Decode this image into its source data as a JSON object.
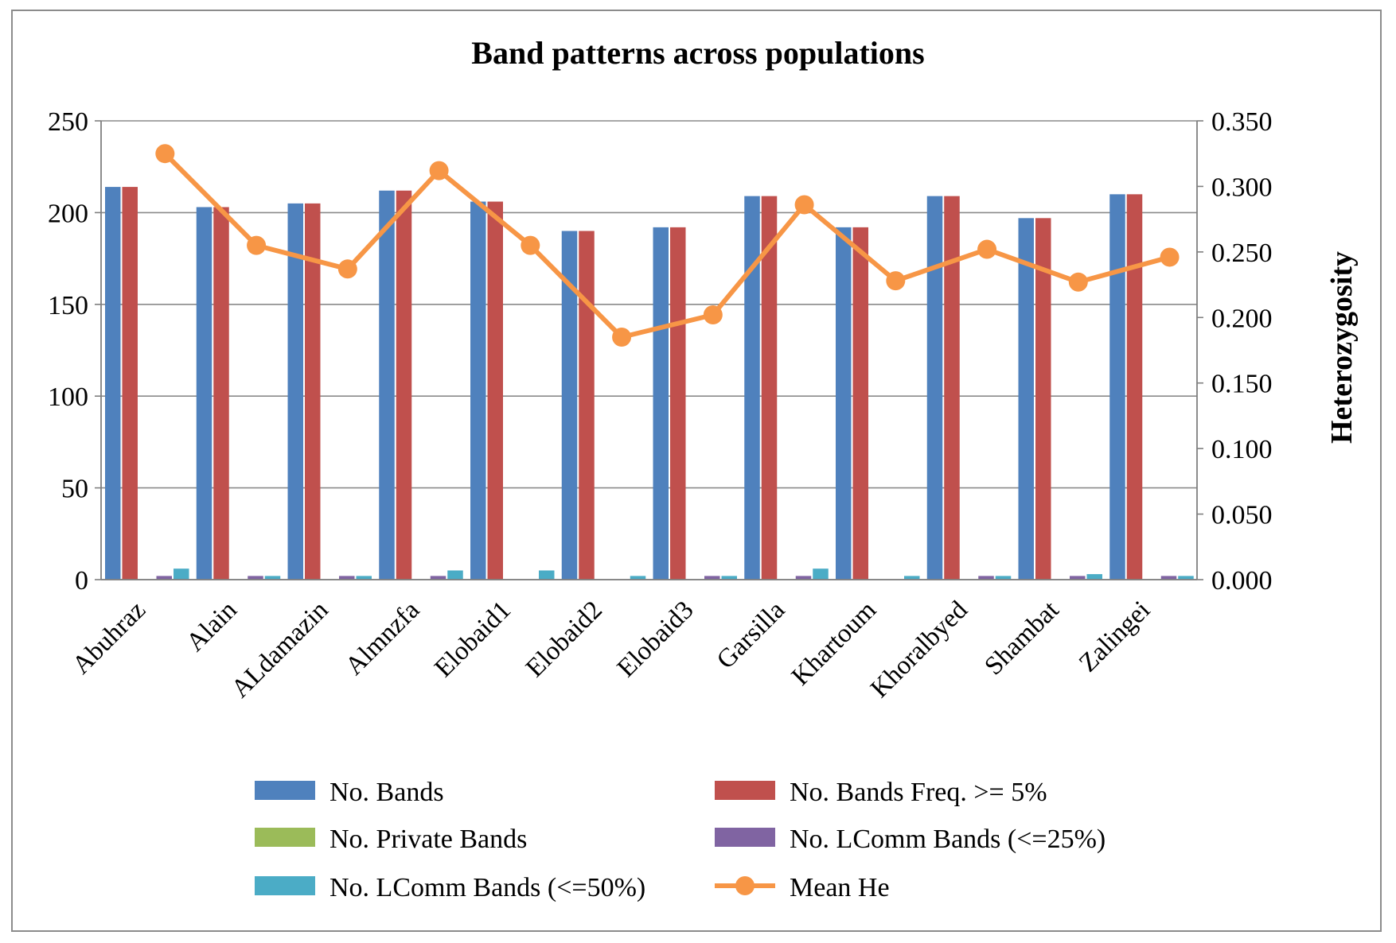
{
  "chart_data": {
    "type": "bar",
    "title": "Band patterns across populations",
    "xlabel": "",
    "ylabel_left": "",
    "ylabel_right": "Heterozygosity",
    "ylim_left": [
      0,
      250
    ],
    "ylim_right": [
      0,
      0.35
    ],
    "yticks_left": [
      "0",
      "50",
      "100",
      "150",
      "200",
      "250"
    ],
    "yticks_right": [
      "0.000",
      "0.050",
      "0.100",
      "0.150",
      "0.200",
      "0.250",
      "0.300",
      "0.350"
    ],
    "grid": true,
    "legend_position": "bottom",
    "categories": [
      "Abuhraz",
      "Alain",
      "ALdamazin",
      "Almnzfa",
      "Elobaid1",
      "Elobaid2",
      "Elobaid3",
      "Garsilla",
      "Khartoum",
      "Khoralbyed",
      "Shambat",
      "Zalingei"
    ],
    "series": [
      {
        "name": "No. Bands",
        "type": "bar",
        "axis": "left",
        "color": "#4F81BD",
        "values": [
          214,
          203,
          205,
          212,
          206,
          190,
          192,
          209,
          192,
          209,
          197,
          210
        ]
      },
      {
        "name": "No. Bands Freq. >= 5%",
        "type": "bar",
        "axis": "left",
        "color": "#C0504D",
        "values": [
          214,
          203,
          205,
          212,
          206,
          190,
          192,
          209,
          192,
          209,
          197,
          210
        ]
      },
      {
        "name": "No. Private Bands",
        "type": "bar",
        "axis": "left",
        "color": "#9BBB59",
        "values": [
          0,
          0,
          0,
          0,
          0,
          0,
          0,
          0,
          0,
          0,
          0,
          0
        ]
      },
      {
        "name": "No. LComm Bands (<=25%)",
        "type": "bar",
        "axis": "left",
        "color": "#8064A2",
        "values": [
          2,
          2,
          2,
          2,
          0,
          0,
          2,
          2,
          0,
          2,
          2,
          2
        ]
      },
      {
        "name": "No. LComm Bands (<=50%)",
        "type": "bar",
        "axis": "left",
        "color": "#4BACC6",
        "values": [
          6,
          2,
          2,
          5,
          5,
          2,
          2,
          6,
          2,
          2,
          3,
          2
        ]
      },
      {
        "name": "Mean He",
        "type": "line",
        "axis": "right",
        "color": "#F79646",
        "values": [
          0.325,
          0.255,
          0.237,
          0.312,
          0.255,
          0.185,
          0.202,
          0.286,
          0.228,
          0.252,
          0.227,
          0.246
        ]
      }
    ]
  }
}
